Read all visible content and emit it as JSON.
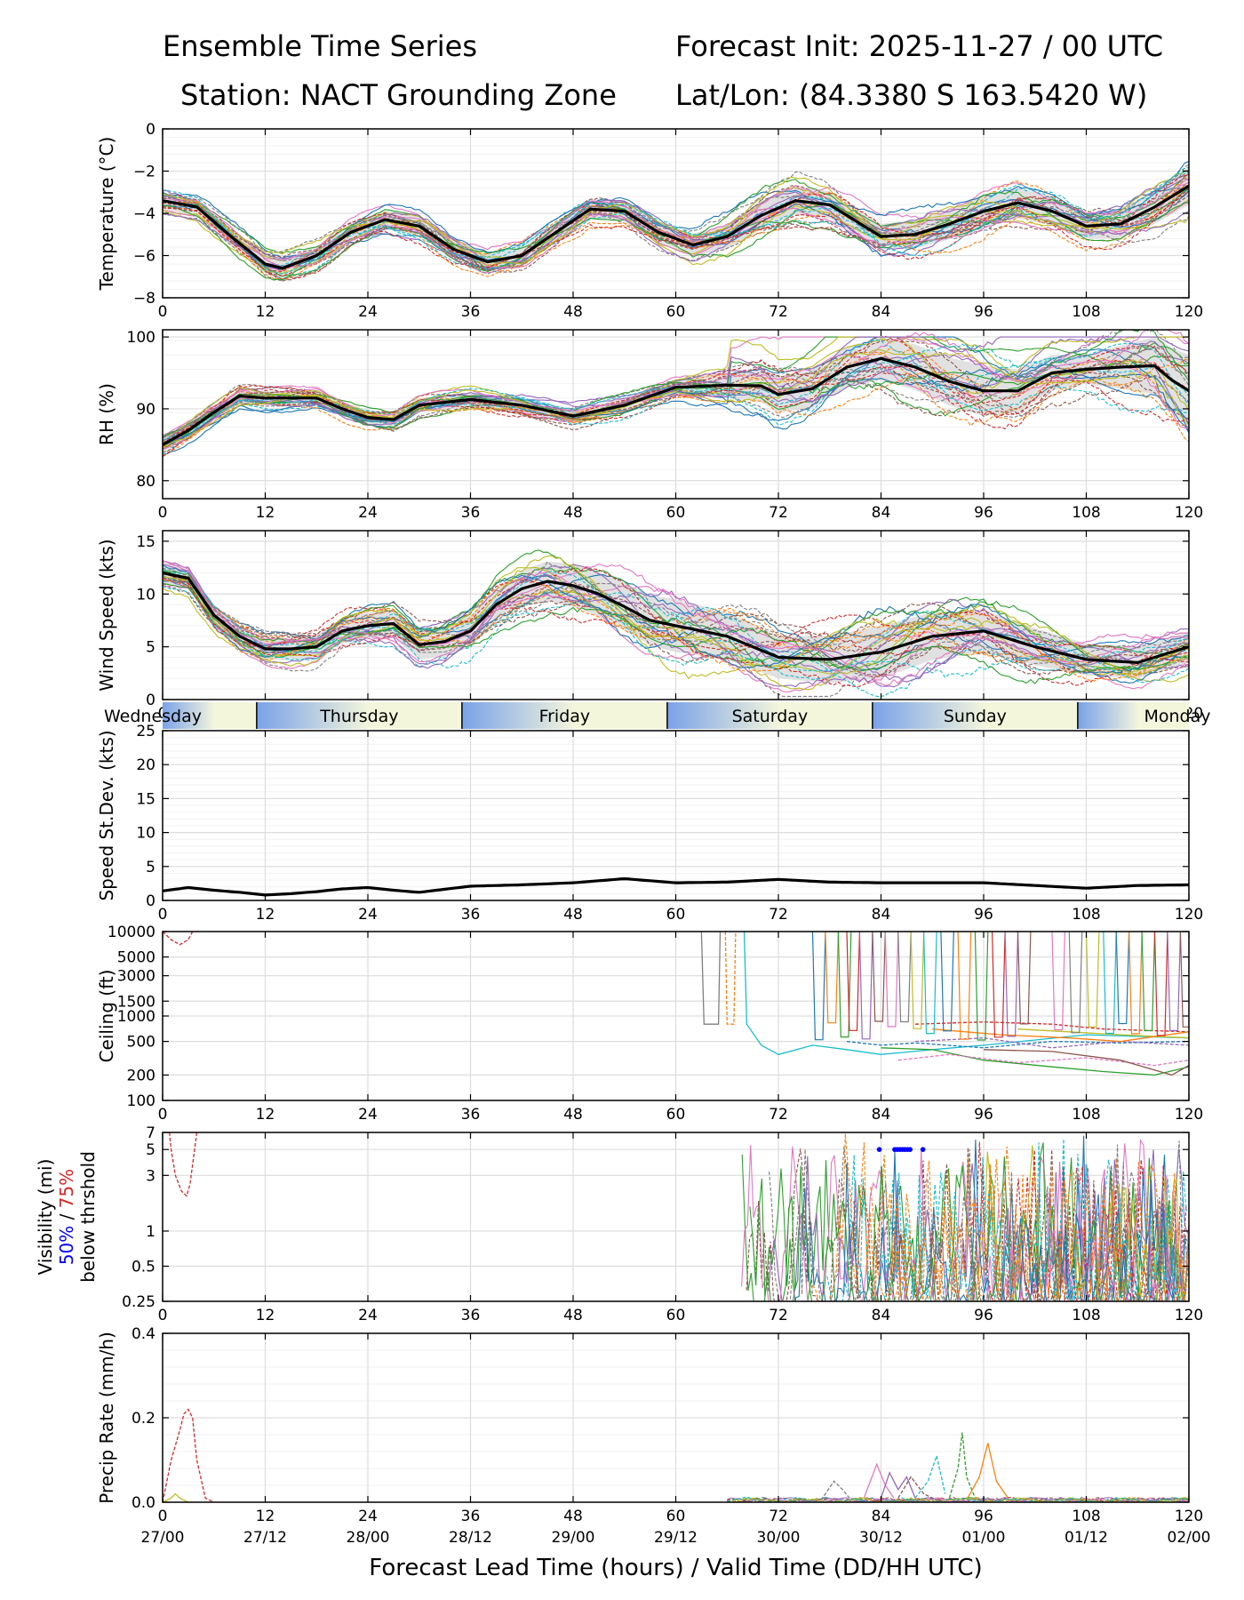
{
  "header": {
    "title_left": "Ensemble Time Series",
    "title_right": "Forecast Init: 2025-11-27 / 00 UTC",
    "station": "Station: NACT Grounding Zone",
    "latlon": "Lat/Lon: (84.3380 S 163.5420 W)"
  },
  "chart_data": {
    "type": "line",
    "x_axis": {
      "label": "Forecast Lead Time (hours) / Valid Time (DD/HH UTC)",
      "range": [
        0,
        120
      ],
      "ticks": [
        0,
        12,
        24,
        36,
        48,
        60,
        72,
        84,
        96,
        108,
        120
      ],
      "valid_time_labels": [
        "27/00",
        "27/12",
        "28/00",
        "28/12",
        "29/00",
        "29/12",
        "30/00",
        "30/12",
        "01/00",
        "01/12",
        "02/00"
      ]
    },
    "day_bar": {
      "days": [
        {
          "label": "Wednesday",
          "start": 0,
          "end": 11
        },
        {
          "label": "Thursday",
          "start": 11,
          "end": 35
        },
        {
          "label": "Friday",
          "start": 35,
          "end": 59
        },
        {
          "label": "Saturday",
          "start": 59,
          "end": 83
        },
        {
          "label": "Sunday",
          "start": 83,
          "end": 107
        },
        {
          "label": "Monday",
          "start": 107,
          "end": 120
        }
      ],
      "colors": {
        "day": "#f4f6dc",
        "night": "#7aa2e8"
      }
    },
    "panels": [
      {
        "id": "temperature",
        "ylabel": "Temperature (°C)",
        "scale": "linear",
        "ylim": [
          -8,
          0
        ],
        "yticks": [
          0,
          -2,
          -4,
          -6,
          -8
        ],
        "ytick_labels": [
          "0",
          "−2",
          "−4",
          "−6",
          "−8"
        ],
        "mean": {
          "x": [
            0,
            4,
            8,
            12,
            14,
            18,
            22,
            26,
            30,
            34,
            38,
            42,
            46,
            50,
            54,
            58,
            62,
            66,
            70,
            74,
            78,
            82,
            84,
            88,
            92,
            96,
            100,
            104,
            108,
            112,
            116,
            120
          ],
          "y": [
            -3.4,
            -3.7,
            -5.1,
            -6.4,
            -6.6,
            -6.0,
            -4.9,
            -4.3,
            -4.6,
            -5.7,
            -6.3,
            -6.0,
            -4.9,
            -3.8,
            -3.9,
            -4.9,
            -5.5,
            -5.1,
            -4.1,
            -3.4,
            -3.6,
            -4.6,
            -5.1,
            -5.0,
            -4.5,
            -3.9,
            -3.5,
            -3.9,
            -4.6,
            -4.5,
            -3.7,
            -2.7
          ]
        },
        "spread_halfwidth": {
          "x": [
            0,
            60,
            72,
            84,
            96,
            108,
            120
          ],
          "y": [
            0.4,
            0.5,
            0.7,
            0.6,
            0.8,
            0.6,
            0.9
          ]
        }
      },
      {
        "id": "rh",
        "ylabel": "RH (%)",
        "scale": "linear",
        "ylim": [
          77.5,
          101
        ],
        "yticks": [
          80,
          90,
          100
        ],
        "ytick_labels": [
          "80",
          "90",
          "100"
        ],
        "mean": {
          "x": [
            0,
            3,
            6,
            9,
            12,
            18,
            21,
            24,
            27,
            30,
            36,
            42,
            48,
            54,
            60,
            66,
            70,
            72,
            76,
            80,
            84,
            88,
            92,
            96,
            100,
            104,
            108,
            112,
            116,
            118,
            120
          ],
          "y": [
            85.0,
            87.0,
            89.5,
            91.8,
            91.5,
            91.5,
            90.0,
            88.8,
            88.5,
            90.5,
            91.3,
            90.5,
            89.0,
            90.5,
            93.0,
            93.3,
            93.2,
            92.0,
            92.8,
            95.8,
            97.0,
            95.8,
            93.8,
            92.5,
            92.5,
            95.0,
            95.5,
            95.8,
            96.0,
            94.0,
            92.5
          ]
        },
        "spread_halfwidth": {
          "x": [
            0,
            30,
            60,
            72,
            84,
            96,
            108,
            120
          ],
          "y": [
            1.0,
            1.0,
            1.0,
            2.5,
            3.0,
            3.5,
            2.0,
            5.0
          ]
        }
      },
      {
        "id": "wind_speed",
        "ylabel": "Wind Speed (kts)",
        "scale": "linear",
        "ylim": [
          0,
          16
        ],
        "yticks": [
          0,
          5,
          10,
          15
        ],
        "ytick_labels": [
          "0",
          "5",
          "10",
          "15"
        ],
        "mean": {
          "x": [
            0,
            3,
            6,
            9,
            12,
            15,
            18,
            21,
            24,
            27,
            30,
            33,
            36,
            39,
            42,
            45,
            48,
            51,
            54,
            57,
            60,
            66,
            72,
            78,
            84,
            90,
            96,
            102,
            108,
            114,
            120
          ],
          "y": [
            12.0,
            11.5,
            8.0,
            6.0,
            4.8,
            4.8,
            5.0,
            6.5,
            7.0,
            7.2,
            5.2,
            5.5,
            6.5,
            9.0,
            10.5,
            11.2,
            10.8,
            10.0,
            8.8,
            7.5,
            7.0,
            6.0,
            4.0,
            3.8,
            4.5,
            6.0,
            6.5,
            5.0,
            3.8,
            3.5,
            5.0
          ]
        },
        "spread_halfwidth": {
          "x": [
            0,
            12,
            36,
            48,
            60,
            72,
            84,
            96,
            108,
            120
          ],
          "y": [
            1.0,
            1.0,
            1.5,
            2.0,
            2.5,
            2.0,
            2.5,
            2.0,
            1.5,
            1.5
          ]
        }
      },
      {
        "id": "speed_stdev",
        "ylabel": "Speed St.Dev. (kts)",
        "scale": "linear",
        "ylim": [
          0,
          25
        ],
        "yticks": [
          0,
          5,
          10,
          15,
          20,
          25
        ],
        "ytick_labels": [
          "0",
          "5",
          "10",
          "15",
          "20",
          "25"
        ],
        "mean": {
          "x": [
            0,
            3,
            6,
            9,
            12,
            15,
            18,
            21,
            24,
            27,
            30,
            36,
            42,
            48,
            54,
            60,
            66,
            72,
            78,
            84,
            90,
            96,
            102,
            108,
            114,
            120
          ],
          "y": [
            1.4,
            1.9,
            1.5,
            1.2,
            0.8,
            1.0,
            1.3,
            1.7,
            1.9,
            1.5,
            1.2,
            2.1,
            2.3,
            2.6,
            3.2,
            2.6,
            2.7,
            3.1,
            2.7,
            2.6,
            2.6,
            2.6,
            2.2,
            1.8,
            2.2,
            2.3
          ]
        }
      },
      {
        "id": "ceiling",
        "ylabel": "Ceiling (ft)",
        "scale": "log",
        "ylim": [
          100,
          10000
        ],
        "yticks": [
          100,
          200,
          500,
          1000,
          1500,
          3000,
          5000,
          10000
        ],
        "ytick_labels": [
          "100",
          "200",
          "500",
          "1000",
          "1500",
          "3000",
          "5000",
          "10000"
        ],
        "members": [
          {
            "color": "#d62728",
            "x": [
              0,
              1,
              2,
              3,
              3.5
            ],
            "y": [
              10000,
              8000,
              7000,
              8000,
              10000
            ]
          },
          {
            "color": "#7f7f7f",
            "x": [
              63,
              63.3,
              65,
              65.2
            ],
            "y": [
              10000,
              800,
              800,
              10000
            ]
          },
          {
            "color": "#ff7f0e",
            "x": [
              65.8,
              66,
              66.8,
              67
            ],
            "y": [
              10000,
              800,
              800,
              10000
            ]
          },
          {
            "color": "#17becf",
            "x": [
              68,
              68.3,
              70,
              72,
              76,
              80,
              84,
              90,
              96,
              108,
              120
            ],
            "y": [
              10000,
              800,
              450,
              350,
              450,
              400,
              350,
              400,
              450,
              600,
              550
            ]
          },
          {
            "color": "#1f77b4",
            "x": [
              80,
              84,
              88,
              96,
              104,
              112,
              120
            ],
            "y": [
              500,
              450,
              480,
              420,
              500,
              480,
              500
            ]
          },
          {
            "color": "#2ca02c",
            "x": [
              84,
              90,
              96,
              104,
              110,
              116,
              120
            ],
            "y": [
              420,
              400,
              300,
              250,
              220,
              200,
              250
            ]
          },
          {
            "color": "#e377c2",
            "x": [
              86,
              92,
              100,
              108,
              116,
              120
            ],
            "y": [
              300,
              350,
              280,
              320,
              260,
              300
            ]
          },
          {
            "color": "#8c564b",
            "x": [
              96,
              104,
              112,
              118,
              120
            ],
            "y": [
              400,
              380,
              300,
              200,
              260
            ]
          },
          {
            "color": "#9467bd",
            "x": [
              88,
              96,
              104,
              112,
              120
            ],
            "y": [
              500,
              550,
              420,
              500,
              450
            ]
          },
          {
            "color": "#bcbd22",
            "x": [
              100,
              106,
              112,
              120
            ],
            "y": [
              700,
              650,
              600,
              550
            ]
          },
          {
            "color": "#d62728",
            "x": [
              88,
              96,
              104,
              110,
              120
            ],
            "y": [
              800,
              850,
              800,
              700,
              650
            ]
          },
          {
            "color": "#ff7f0e",
            "x": [
              90,
              98,
              106,
              112,
              120
            ],
            "y": [
              700,
              600,
              550,
              500,
              650
            ]
          }
        ],
        "drops_x": [
          76,
          77.5,
          79,
          80,
          81.5,
          83,
          84.5,
          86,
          87.5,
          89,
          91,
          93,
          95,
          97,
          98.5,
          100,
          104,
          106,
          108,
          110,
          111.5,
          113,
          114.5,
          116,
          117.5,
          119
        ]
      },
      {
        "id": "visibility",
        "ylabel": "Visibility (mi)",
        "ylabel_extra": {
          "line2a": "50%",
          "slash": " / ",
          "line2b": "75%",
          "line3": "below thrshold"
        },
        "scale": "log",
        "ylim": [
          0.25,
          7
        ],
        "yticks": [
          0.25,
          0.5,
          1,
          3,
          5,
          7
        ],
        "ytick_labels": [
          "0.25",
          "0.5",
          "1",
          "3",
          "5",
          "7"
        ],
        "members": [
          {
            "color": "#d62728",
            "x": [
              0.8,
              1,
              1.5,
              2.2,
              2.8,
              3.2,
              4
            ],
            "y": [
              7,
              5,
              3,
              2.2,
              2.0,
              2.5,
              7
            ]
          }
        ],
        "threshold_50_points_x": [
          83.8,
          85.6,
          85.9,
          86.2,
          86.5,
          86.8,
          87.1,
          87.4,
          88.9
        ],
        "threshold_50_y": 5,
        "active_start": 67.5
      },
      {
        "id": "precip",
        "ylabel": "Precip Rate (mm/h)",
        "scale": "linear",
        "ylim": [
          0,
          0.4
        ],
        "yticks": [
          0.0,
          0.2,
          0.4
        ],
        "ytick_labels": [
          "0.0",
          "0.2",
          "0.4"
        ],
        "members": [
          {
            "color": "#d62728",
            "x": [
              0,
              1,
              2,
              2.5,
              3,
              3.5,
              4,
              5,
              6
            ],
            "y": [
              0,
              0.1,
              0.17,
              0.21,
              0.22,
              0.2,
              0.1,
              0.01,
              0
            ]
          },
          {
            "color": "#bcbd22",
            "x": [
              0,
              1,
              1.5,
              2,
              3,
              4
            ],
            "y": [
              0,
              0.01,
              0.02,
              0.01,
              0,
              0
            ]
          },
          {
            "color": "#2ca02c",
            "x": [
              92,
              93,
              93.5,
              94,
              95
            ],
            "y": [
              0.01,
              0.08,
              0.165,
              0.06,
              0.01
            ]
          },
          {
            "color": "#ff7f0e",
            "x": [
              94,
              95.5,
              96.5,
              97.5,
              99
            ],
            "y": [
              0.005,
              0.06,
              0.14,
              0.05,
              0.005
            ]
          },
          {
            "color": "#17becf",
            "x": [
              88,
              89.5,
              90.5,
              91.5
            ],
            "y": [
              0.01,
              0.05,
              0.11,
              0.02
            ]
          },
          {
            "color": "#e377c2",
            "x": [
              82,
              83.5,
              84.5,
              85.5
            ],
            "y": [
              0.01,
              0.09,
              0.04,
              0.01
            ]
          },
          {
            "color": "#7f7f7f",
            "x": [
              77,
              78.5,
              79.5,
              80.5
            ],
            "y": [
              0.005,
              0.05,
              0.03,
              0.005
            ]
          },
          {
            "color": "#9467bd",
            "x": [
              84,
              85,
              86,
              87,
              88
            ],
            "y": [
              0.01,
              0.07,
              0.03,
              0.06,
              0.01
            ]
          },
          {
            "color": "#8c564b",
            "x": [
              86,
              87.5,
              89,
              90
            ],
            "y": [
              0.01,
              0.06,
              0.02,
              0.01
            ]
          }
        ]
      }
    ]
  }
}
